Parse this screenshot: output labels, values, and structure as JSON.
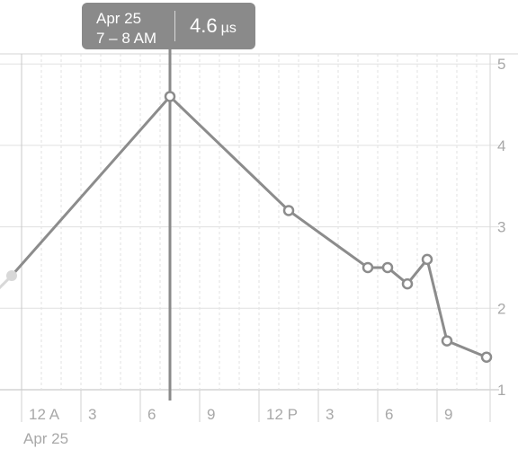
{
  "tooltip": {
    "date": "Apr 25",
    "range": "7 – 8 AM",
    "value": "4.6",
    "unit": "µs"
  },
  "chart_data": {
    "type": "line",
    "x_tick_labels": [
      "12 A",
      "3",
      "6",
      "9",
      "12 P",
      "3",
      "6",
      "9"
    ],
    "x_tick_hours": [
      0,
      3,
      6,
      9,
      12,
      15,
      18,
      21
    ],
    "x_date_label": "Apr 25",
    "y_tick_labels": [
      "1",
      "2",
      "3",
      "4",
      "5"
    ],
    "ylim": [
      1,
      5.1
    ],
    "xlim": [
      -0.5,
      23
    ],
    "grid": true,
    "selected_hour": 7.5,
    "series": [
      {
        "x": [
          -0.5,
          7.5,
          13.5,
          17.5,
          18.5,
          19.5,
          20.5,
          21.5,
          23.5
        ],
        "y": [
          2.4,
          4.6,
          3.2,
          2.5,
          2.5,
          2.3,
          2.6,
          1.6,
          1.4
        ],
        "faded_points": [
          0
        ],
        "color": "#8c8c8c"
      }
    ]
  }
}
